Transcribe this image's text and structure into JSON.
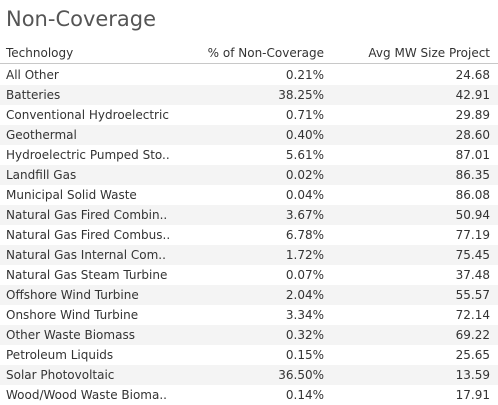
{
  "title": "Non-Coverage",
  "columns": {
    "technology": "Technology",
    "pct_non_coverage": "% of Non-Coverage",
    "avg_mw_size": "Avg MW Size Project"
  },
  "rows": [
    {
      "technology": "All Other",
      "pct": "0.21%",
      "avg": "24.68"
    },
    {
      "technology": "Batteries",
      "pct": "38.25%",
      "avg": "42.91"
    },
    {
      "technology": "Conventional Hydroelectric",
      "pct": "0.71%",
      "avg": "29.89"
    },
    {
      "technology": "Geothermal",
      "pct": "0.40%",
      "avg": "28.60"
    },
    {
      "technology": "Hydroelectric Pumped Sto..",
      "pct": "5.61%",
      "avg": "87.01"
    },
    {
      "technology": "Landfill Gas",
      "pct": "0.02%",
      "avg": "86.35"
    },
    {
      "technology": "Municipal Solid Waste",
      "pct": "0.04%",
      "avg": "86.08"
    },
    {
      "technology": "Natural Gas Fired Combin..",
      "pct": "3.67%",
      "avg": "50.94"
    },
    {
      "technology": "Natural Gas Fired Combus..",
      "pct": "6.78%",
      "avg": "77.19"
    },
    {
      "technology": "Natural Gas Internal Com..",
      "pct": "1.72%",
      "avg": "75.45"
    },
    {
      "technology": "Natural Gas Steam Turbine",
      "pct": "0.07%",
      "avg": "37.48"
    },
    {
      "technology": "Offshore Wind Turbine",
      "pct": "2.04%",
      "avg": "55.57"
    },
    {
      "technology": "Onshore Wind Turbine",
      "pct": "3.34%",
      "avg": "72.14"
    },
    {
      "technology": "Other Waste Biomass",
      "pct": "0.32%",
      "avg": "69.22"
    },
    {
      "technology": "Petroleum Liquids",
      "pct": "0.15%",
      "avg": "25.65"
    },
    {
      "technology": "Solar Photovoltaic",
      "pct": "36.50%",
      "avg": "13.59"
    },
    {
      "technology": "Wood/Wood Waste Bioma..",
      "pct": "0.14%",
      "avg": "17.91"
    }
  ]
}
